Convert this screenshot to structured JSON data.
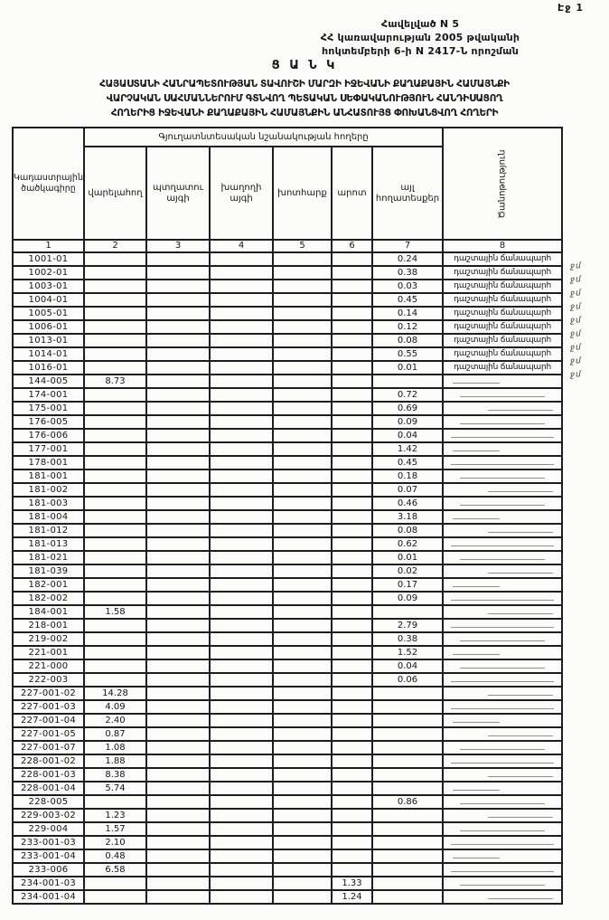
{
  "page": {
    "page_label": "Էջ 1",
    "appendix_lines": [
      "Հավելված N 5",
      "ՀՀ կառավարության 2005 թվականի",
      "հոկտեմբերի 6-ի N 2417-Ն որոշման"
    ],
    "title": "Ց Ա Ն Կ",
    "subtitle_lines": [
      "ՀԱՅԱՍՏԱՆԻ ՀԱՆՐԱՊԵՏՈՒԹՅԱՆ ՏԱՎՈՒՇԻ ՄԱՐԶԻ ԻՋԵՎԱՆԻ ՔԱՂԱՔԱՅԻՆ ՀԱՄԱՅՆՔԻ",
      "ՎԱՐՉԱԿԱՆ ՍԱՀՄԱՆՆԵՐՈՒՄ ԳՏՆՎՈՂ ՊԵՏԱԿԱՆ ՍԵՓԱԿԱՆՈՒԹՅՈՒՆ ՀԱՆԴԻՍԱՑՈՂ",
      "ՀՈՂԵՐԻՑ ԻՋԵՎԱՆԻ ՔԱՂԱՔԱՅԻՆ ՀԱՄԱՅՆՔԻՆ ԱՆՀԱՏՈՒՅՑ ՓՈԽԱՆՑՎՈՂ ՀՈՂԵՐԻ"
    ]
  },
  "table": {
    "group_header": "Գյուղատնտեսական նշանակության հողերը",
    "col1_header": "Կադաստրային ծածկագիրը",
    "note_header": "Ծանոթություն",
    "sub_headers": [
      "վարելահող",
      "պտղատու այգի",
      "խաղողի այգի",
      "խոտհարք",
      "արոտ",
      "այլ հողատեսքեր"
    ],
    "column_numbers": [
      "1",
      "2",
      "3",
      "4",
      "5",
      "6",
      "7",
      "8"
    ],
    "margin_mark": "ջմ",
    "rows": [
      {
        "code": "1001-01",
        "c7": "0.24",
        "note": "դաշտային ճանապարհ",
        "mark": true
      },
      {
        "code": "1002-01",
        "c7": "0.38",
        "note": "դաշտային ճանապարհ",
        "mark": true
      },
      {
        "code": "1003-01",
        "c7": "0.03",
        "note": "դաշտային ճանապարհ",
        "mark": true
      },
      {
        "code": "1004-01",
        "c7": "0.45",
        "note": "դաշտային ճանապարհ",
        "mark": true
      },
      {
        "code": "1005-01",
        "c7": "0.14",
        "note": "դաշտային ճանապարհ",
        "mark": true
      },
      {
        "code": "1006-01",
        "c7": "0.12",
        "note": "դաշտային ճանապարհ",
        "mark": true
      },
      {
        "code": "1013-01",
        "c7": "0.08",
        "note": "դաշտային ճանապարհ",
        "mark": true
      },
      {
        "code": "1014-01",
        "c7": "0.55",
        "note": "դաշտային ճանապարհ",
        "mark": true
      },
      {
        "code": "1016-01",
        "c7": "0.01",
        "note": "դաշտային ճանապարհ",
        "mark": true
      },
      {
        "code": "144-005",
        "c2": "8.73"
      },
      {
        "code": "174-001",
        "c7": "0.72"
      },
      {
        "code": "175-001",
        "c7": "0.69"
      },
      {
        "code": "176-005",
        "c7": "0.09"
      },
      {
        "code": "176-006",
        "c7": "0.04"
      },
      {
        "code": "177-001",
        "c7": "1.42"
      },
      {
        "code": "178-001",
        "c7": "0.45"
      },
      {
        "code": "181-001",
        "c7": "0.18"
      },
      {
        "code": "181-002",
        "c7": "0.07"
      },
      {
        "code": "181-003",
        "c7": "0.46"
      },
      {
        "code": "181-004",
        "c7": "3.18"
      },
      {
        "code": "181-012",
        "c7": "0.08"
      },
      {
        "code": "181-013",
        "c7": "0.62"
      },
      {
        "code": "181-021",
        "c7": "0.01"
      },
      {
        "code": "181-039",
        "c7": "0.02"
      },
      {
        "code": "182-001",
        "c7": "0.17"
      },
      {
        "code": "182-002",
        "c7": "0.09"
      },
      {
        "code": "184-001",
        "c2": "1.58"
      },
      {
        "code": "218-001",
        "c7": "2.79"
      },
      {
        "code": "219-002",
        "c7": "0.38"
      },
      {
        "code": "221-001",
        "c7": "1.52"
      },
      {
        "code": "221-000",
        "c7": "0.04"
      },
      {
        "code": "222-003",
        "c7": "0.06"
      },
      {
        "code": "227-001-02",
        "c2": "14.28"
      },
      {
        "code": "227-001-03",
        "c2": "4.09"
      },
      {
        "code": "227-001-04",
        "c2": "2.40"
      },
      {
        "code": "227-001-05",
        "c2": "0.87"
      },
      {
        "code": "227-001-07",
        "c2": "1.08"
      },
      {
        "code": "228-001-02",
        "c2": "1.88"
      },
      {
        "code": "228-001-03",
        "c2": "8.38"
      },
      {
        "code": "228-001-04",
        "c2": "5.74"
      },
      {
        "code": "228-005",
        "c7": "0.86"
      },
      {
        "code": "229-003-02",
        "c2": "1.23"
      },
      {
        "code": "229-004",
        "c2": "1.57"
      },
      {
        "code": "233-001-03",
        "c2": "2.10"
      },
      {
        "code": "233-001-04",
        "c2": "0.48"
      },
      {
        "code": "233-006",
        "c2": "6.58"
      },
      {
        "code": "234-001-03",
        "c6": "1.33"
      },
      {
        "code": "234-001-04",
        "c6": "1.24"
      }
    ]
  }
}
